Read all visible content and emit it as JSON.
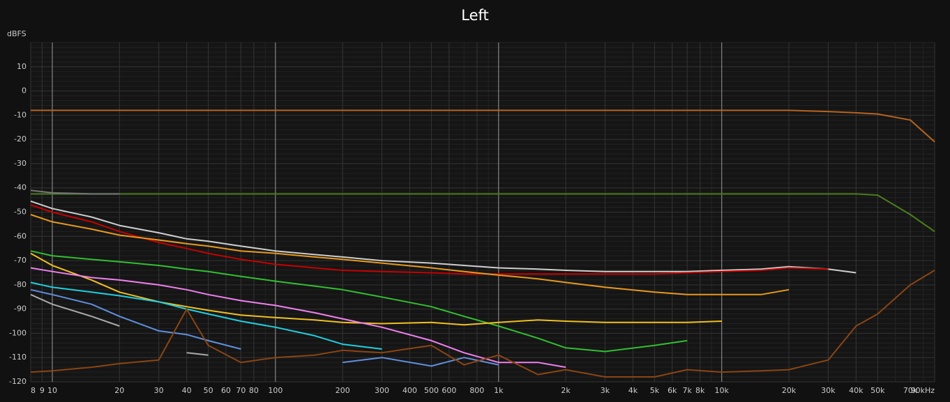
{
  "chart_data": {
    "type": "line",
    "title": "Left",
    "y_label": "dBFS",
    "log_x": true,
    "grid": true,
    "xlim": [
      8,
      90000
    ],
    "ylim": [
      -120,
      20
    ],
    "xticks": [
      8,
      9,
      10,
      20,
      30,
      40,
      50,
      60,
      70,
      80,
      100,
      200,
      300,
      400,
      500,
      600,
      800,
      {
        "value": 1000,
        "label": "1k"
      },
      {
        "value": 2000,
        "label": "2k"
      },
      {
        "value": 3000,
        "label": "3k"
      },
      {
        "value": 4000,
        "label": "4k"
      },
      {
        "value": 5000,
        "label": "5k"
      },
      {
        "value": 6000,
        "label": "6k"
      },
      {
        "value": 7000,
        "label": "7k"
      },
      {
        "value": 8000,
        "label": "8k"
      },
      {
        "value": 10000,
        "label": "10k"
      },
      {
        "value": 20000,
        "label": "20k"
      },
      {
        "value": 30000,
        "label": "30k"
      },
      {
        "value": 40000,
        "label": "40k"
      },
      {
        "value": 50000,
        "label": "50k"
      },
      {
        "value": 70000,
        "label": "70k"
      },
      {
        "value": 90000,
        "label": "90kHz"
      }
    ],
    "yticks": [
      -120,
      -110,
      -100,
      -90,
      -80,
      -70,
      -60,
      -50,
      -40,
      -30,
      -20,
      -10,
      0,
      10
    ],
    "x": [
      8,
      10,
      15,
      20,
      30,
      40,
      50,
      70,
      100,
      150,
      200,
      300,
      500,
      700,
      1000,
      1500,
      2000,
      3000,
      5000,
      7000,
      10000,
      15000,
      20000,
      30000,
      40000,
      50000,
      70000,
      90000
    ],
    "series": [
      {
        "color": "#b8631f",
        "values": [
          -8,
          -8,
          -8,
          -8,
          -8,
          -8,
          -8,
          -8,
          -8,
          -8,
          -8,
          -8,
          -8,
          -8,
          -8,
          -8,
          -8,
          -8,
          -8,
          -8,
          -8,
          -8,
          -8,
          -8.5,
          -9,
          -9.5,
          -12,
          -21
        ]
      },
      {
        "color": "#4a7d1c",
        "values": [
          -42.5,
          -42.5,
          -42.5,
          -42.5,
          -42.5,
          -42.5,
          -42.5,
          -42.5,
          -42.5,
          -42.5,
          -42.5,
          -42.5,
          -42.5,
          -42.5,
          -42.5,
          -42.5,
          -42.5,
          -42.5,
          -42.5,
          -42.5,
          -42.5,
          -42.5,
          -42.5,
          -42.5,
          -42.5,
          -43,
          -51,
          -58
        ]
      },
      {
        "color": "#777777",
        "values": [
          -41,
          -42,
          -42.5,
          -42.5,
          null,
          null,
          null,
          null,
          null,
          null,
          null,
          null,
          null,
          null,
          null,
          null,
          null,
          null,
          null,
          null,
          null,
          null,
          null,
          null,
          null,
          null,
          null,
          null
        ]
      },
      {
        "color": "#cfcfcf",
        "values": [
          -45.5,
          -48.5,
          -52,
          -55.5,
          -58.5,
          -61,
          -62,
          -64,
          -66,
          -67.5,
          -68.5,
          -70,
          -71,
          -72,
          -73,
          -73.5,
          -74,
          -74.5,
          -74.5,
          -74.5,
          -74,
          -73.5,
          -72.5,
          -73.5,
          -75,
          null,
          null,
          null
        ]
      },
      {
        "color": "#c80000",
        "values": [
          -47,
          -50,
          -54,
          -58,
          -62.5,
          -65,
          -67,
          -69.5,
          -71.5,
          -73,
          -74,
          -74.5,
          -75,
          -75.5,
          -75.5,
          -75.5,
          -75.5,
          -75.5,
          -75.5,
          -75,
          -74.5,
          -74,
          -73,
          -73.5,
          null,
          null,
          null,
          null
        ]
      },
      {
        "color": "#e89a1c",
        "values": [
          -51,
          -54,
          -57,
          -59.5,
          -61.5,
          -63,
          -64,
          -66,
          -67,
          -68.5,
          -69.5,
          -71,
          -73,
          -74.5,
          -76,
          -77.5,
          -79,
          -81,
          -83,
          -84,
          -84,
          -84,
          -82,
          null,
          null,
          null,
          null,
          null
        ]
      },
      {
        "color": "#30c030",
        "values": [
          -66,
          -68,
          -69.5,
          -70.5,
          -72,
          -73.5,
          -74.5,
          -76.5,
          -78.5,
          -80.5,
          -82,
          -85,
          -89,
          -93,
          -97,
          -102,
          -106,
          -107.5,
          -105,
          -103,
          null,
          null,
          null,
          null,
          null,
          null,
          null,
          null
        ]
      },
      {
        "color": "#f0c020",
        "values": [
          -67,
          -72,
          -78,
          -83,
          -87,
          -89,
          -90.5,
          -92.5,
          -93.5,
          -94.5,
          -95.5,
          -96,
          -95.5,
          -96.5,
          -95.5,
          -94.5,
          -95,
          -95.5,
          -95.5,
          -95.5,
          -95,
          null,
          null,
          null,
          null,
          null,
          null,
          null
        ]
      },
      {
        "color": "#f080f0",
        "values": [
          -73,
          -74.5,
          -77,
          -78,
          -80,
          -82,
          -84,
          -86.5,
          -88.5,
          -91.5,
          -94,
          -97.5,
          -103,
          -108,
          -112,
          -112,
          -114,
          null,
          null,
          null,
          null,
          null,
          null,
          null,
          null,
          null,
          null,
          null
        ]
      },
      {
        "color": "#20d0e0",
        "values": [
          -79,
          -81,
          -83,
          -84.5,
          -87,
          -90,
          -92,
          -95,
          -97.5,
          -101,
          -104.5,
          -106.5,
          null,
          null,
          null,
          null,
          null,
          null,
          null,
          null,
          null,
          null,
          null,
          null,
          null,
          null,
          null,
          null
        ]
      },
      {
        "color": "#6090e0",
        "values": [
          -82,
          -84,
          -88,
          -93,
          -99,
          -100.5,
          -103,
          -106.5,
          null,
          null,
          -112,
          -110,
          -113.5,
          -110,
          -113,
          null,
          null,
          -114,
          null,
          null,
          null,
          null,
          null,
          null,
          null,
          null,
          null,
          null
        ]
      },
      {
        "color": "#aaaaaa",
        "values": [
          -84,
          -88,
          -93,
          -97,
          null,
          -108,
          -109,
          null,
          null,
          null,
          null,
          null,
          null,
          null,
          null,
          null,
          null,
          null,
          null,
          null,
          null,
          null,
          null,
          null,
          null,
          null,
          null,
          null
        ]
      },
      {
        "color": "#8b4513",
        "values": [
          -116,
          -115.5,
          -114,
          -112.5,
          -111,
          -90,
          -105,
          -112,
          -110,
          -109,
          -107,
          -108,
          -105,
          -113,
          -109,
          -117,
          -115,
          -118,
          -118,
          -115,
          -116,
          -115.5,
          -115,
          -111,
          -97,
          -92,
          -80,
          -74
        ]
      }
    ]
  }
}
